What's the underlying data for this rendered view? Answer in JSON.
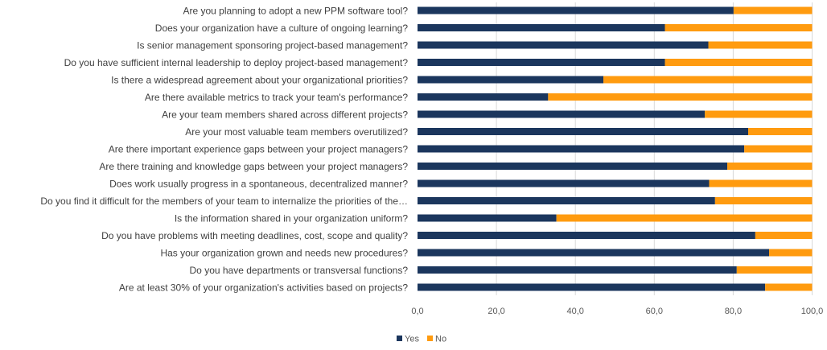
{
  "chart_data": {
    "type": "bar",
    "orientation": "horizontal",
    "stacked": true,
    "categories": [
      "Are you planning to adopt a new PPM software tool?",
      "Does your organization have a culture of ongoing learning?",
      "Is senior management sponsoring project-based management?",
      "Do you have sufficient internal leadership to deploy project-based management?",
      "Is there a widespread agreement about your organizational priorities?",
      "Are there available metrics to track your team's performance?",
      "Are your team members shared across different projects?",
      "Are your most valuable team members overutilized?",
      "Are there important experience gaps between your project managers?",
      "Are there training and knowledge gaps between your project managers?",
      "Does work usually progress in a spontaneous, decentralized manner?",
      "Do you find it difficult for the members of your team to internalize the priorities of the…",
      "Is the information shared in your organization uniform?",
      "Do you have problems with meeting deadlines, cost, scope and quality?",
      "Has your organization grown and needs new procedures?",
      "Do you have departments or transversal functions?",
      "Are at least 30% of your organization's activities based on projects?"
    ],
    "series": [
      {
        "name": "Yes",
        "color": "#1b365d",
        "values": [
          80.1,
          62.7,
          73.7,
          62.7,
          47.1,
          33.1,
          72.8,
          83.8,
          82.8,
          78.5,
          73.9,
          75.4,
          35.2,
          85.6,
          89.1,
          80.9,
          88.1
        ]
      },
      {
        "name": "No",
        "color": "#ff9b0f",
        "values": [
          19.9,
          37.3,
          26.3,
          37.3,
          52.9,
          66.9,
          27.2,
          16.2,
          17.2,
          21.5,
          26.1,
          24.6,
          64.8,
          14.4,
          10.9,
          19.1,
          11.9
        ]
      }
    ],
    "xlim": [
      0,
      100
    ],
    "x_ticks": [
      "0,0",
      "20,0",
      "40,0",
      "60,0",
      "80,0",
      "100,0"
    ],
    "grid": true,
    "legend": "bottom"
  }
}
